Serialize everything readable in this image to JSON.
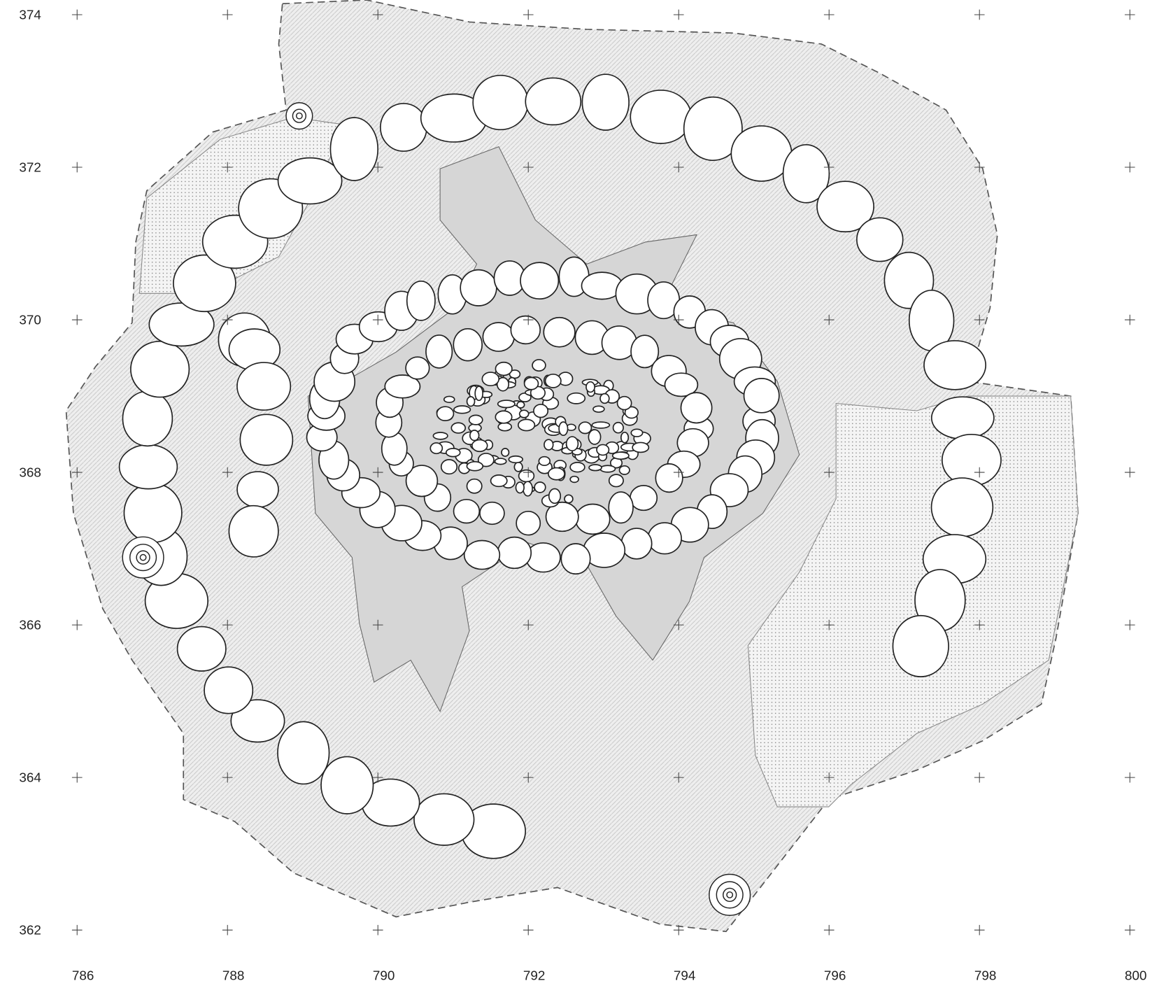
{
  "grid": {
    "x_labels": [
      786,
      788,
      790,
      792,
      794,
      796,
      798,
      800
    ],
    "y_labels": [
      374,
      372,
      370,
      368,
      366,
      364,
      362
    ]
  }
}
